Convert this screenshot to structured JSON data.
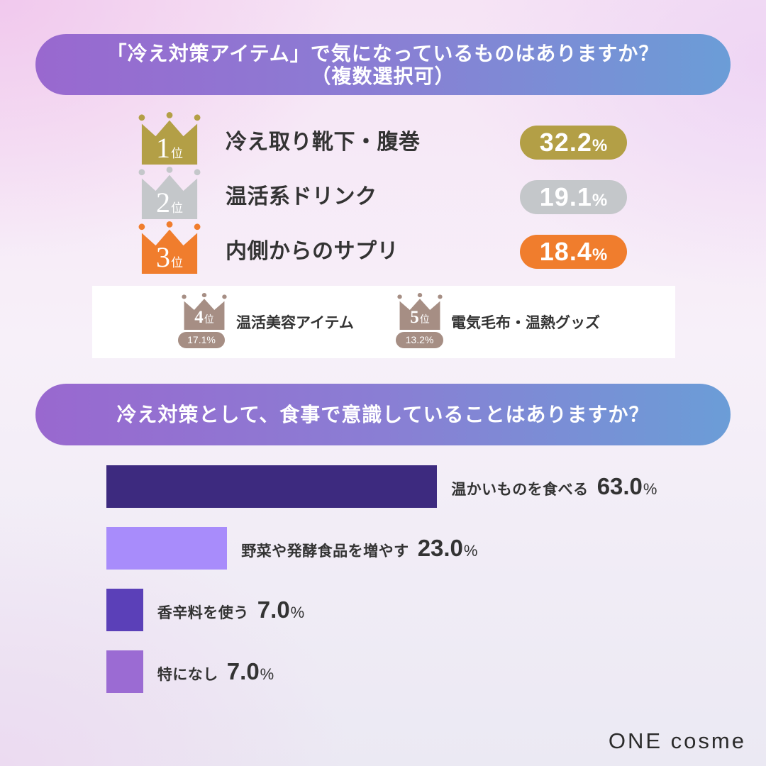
{
  "theme": {
    "banner_start": "#9968cf",
    "banner_end": "#6b9dd7",
    "text": "#333333"
  },
  "chart_data": [
    {
      "type": "table",
      "title": "「冷え対策アイテム」で気になっているものはありますか？",
      "subtitle": "（複数選択可）",
      "rank_suffix": "位",
      "unit": "%",
      "rows": [
        {
          "rank": 1,
          "label": "冷え取り靴下・腹巻",
          "value": 32.2,
          "color": "#b39f46",
          "icon": "gold-crown-icon"
        },
        {
          "rank": 2,
          "label": "温活系ドリンク",
          "value": 19.1,
          "color": "#c4c7ca",
          "icon": "silver-crown-icon"
        },
        {
          "rank": 3,
          "label": "内側からのサプリ",
          "value": 18.4,
          "color": "#f07d2d",
          "icon": "bronze-crown-icon"
        },
        {
          "rank": 4,
          "label": "温活美容アイテム",
          "value": 17.1,
          "color": "#a68e84",
          "icon": "crown-icon"
        },
        {
          "rank": 5,
          "label": "電気毛布・温熱グッズ",
          "value": 13.2,
          "color": "#a68e84",
          "icon": "crown-icon"
        }
      ]
    },
    {
      "type": "bar",
      "orientation": "horizontal",
      "title": "冷え対策として、食事で意識していることはありますか？",
      "categories": [
        "温かいものを食べる",
        "野菜や発酵食品を増やす",
        "香辛料を使う",
        "特になし"
      ],
      "values": [
        63.0,
        23.0,
        7.0,
        7.0
      ],
      "unit": "%",
      "colors": [
        "#3d2a7f",
        "#a88cfb",
        "#5b40b8",
        "#9b6bd3"
      ]
    }
  ],
  "brand": {
    "logo_text": "ONE cosme"
  }
}
